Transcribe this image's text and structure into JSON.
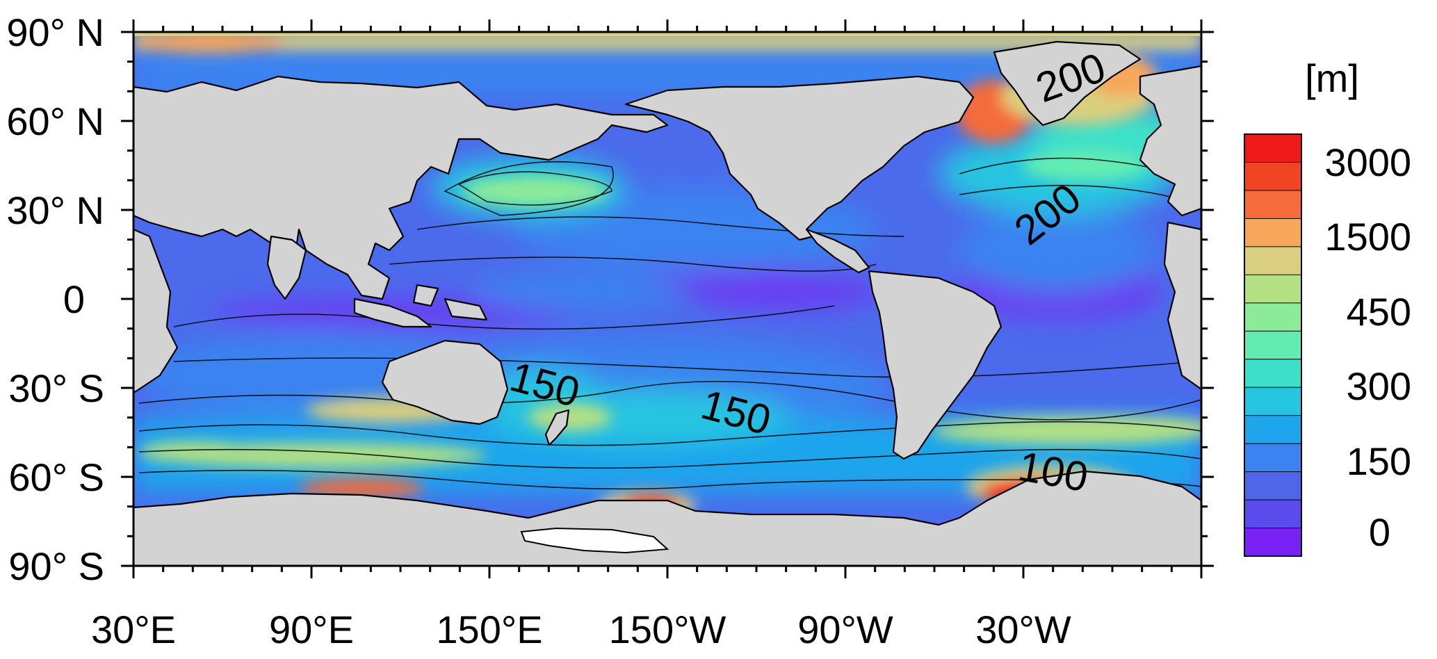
{
  "map": {
    "title": "",
    "projection": "cylindrical-equidistant",
    "longitude_range": "30°E eastward to 30°E (360°)",
    "latitude_range": [
      -90,
      90
    ],
    "x_ticks": [
      "30°E",
      "90°E",
      "150°E",
      "150°W",
      "90°W",
      "30°W"
    ],
    "y_ticks": [
      "90° N",
      "60° N",
      "30° N",
      "0",
      "30° S",
      "60° S",
      "90° S"
    ],
    "land_color": "#d3d3d3",
    "ice_shelf_color": "#ffffff",
    "contour_labels": [
      "200",
      "200",
      "150",
      "150",
      "100"
    ]
  },
  "colorbar": {
    "unit_label": "[m]",
    "tick_labels": [
      "3000",
      "1500",
      "450",
      "300",
      "150",
      "0"
    ],
    "colors": [
      "#ee1a1a",
      "#f04522",
      "#f56c3a",
      "#f7a75a",
      "#d9cf7e",
      "#b3e083",
      "#8ceb98",
      "#63ecb2",
      "#3ce0c9",
      "#25c4e0",
      "#1ea5ec",
      "#3a83f0",
      "#4d66ea",
      "#5b4bed",
      "#7a22f5"
    ]
  },
  "palette": {
    "deep_blue": "#4d66ea",
    "mid_blue": "#3a83f0",
    "light_blue": "#1ea5ec",
    "cyan": "#25c4e0",
    "teal": "#3ce0c9",
    "green": "#8ceb98",
    "khaki": "#d9cf7e",
    "orange": "#f56c3a",
    "red": "#ee1a1a",
    "violet": "#6f3cf0"
  }
}
